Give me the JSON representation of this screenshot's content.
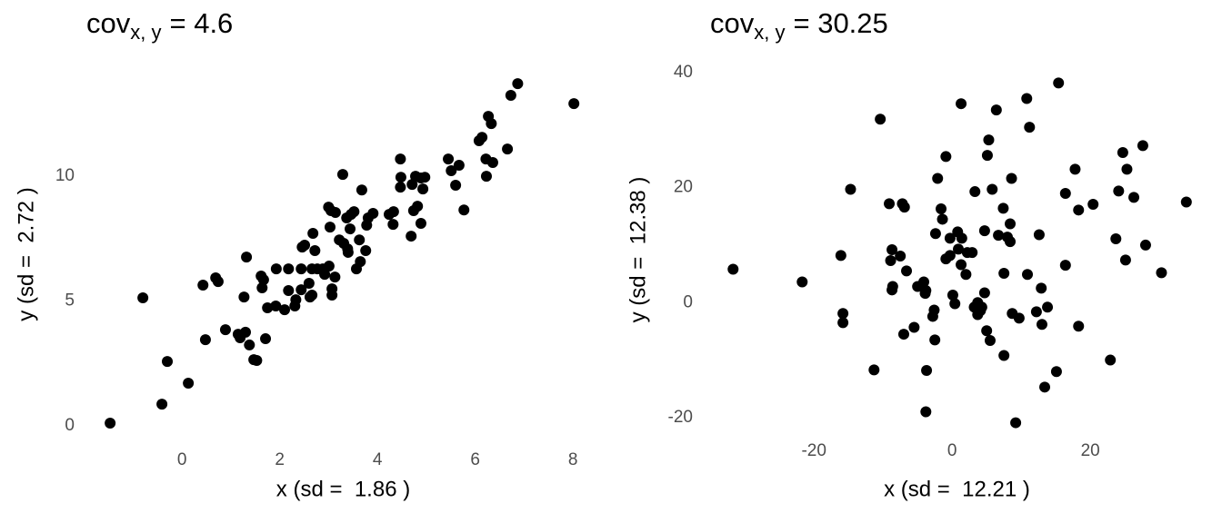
{
  "chart_data": [
    {
      "type": "scatter",
      "title": {
        "base": "cov",
        "subscript": "x, y",
        "rest": "= 4.6"
      },
      "x_label": "x (sd =  1.86 )",
      "y_label": "y (sd =  2.72 )",
      "color": "#000000",
      "grid": false,
      "xlim": [
        -1.77,
        8.37
      ],
      "ylim": [
        -0.4,
        14.15
      ],
      "xticks": [
        0,
        2,
        4,
        6,
        8
      ],
      "yticks": [
        0,
        5,
        10
      ],
      "x": [
        -1.47,
        -0.41,
        -0.8,
        -0.3,
        0.13,
        0.43,
        0.48,
        0.69,
        0.74,
        0.89,
        1.15,
        1.19,
        1.3,
        1.27,
        1.32,
        1.38,
        1.47,
        1.53,
        1.62,
        1.67,
        1.64,
        1.71,
        1.75,
        1.92,
        1.93,
        2.1,
        2.18,
        2.18,
        2.33,
        2.31,
        2.44,
        2.44,
        2.46,
        2.51,
        2.6,
        2.62,
        2.66,
        2.68,
        2.66,
        2.77,
        2.72,
        2.88,
        2.92,
        3.0,
        3.05,
        3.03,
        3.01,
        3.07,
        3.07,
        3.13,
        3.14,
        3.22,
        3.29,
        3.31,
        3.37,
        3.39,
        3.4,
        3.44,
        3.46,
        3.52,
        3.57,
        3.63,
        3.65,
        3.68,
        3.76,
        3.78,
        3.81,
        3.91,
        4.24,
        4.33,
        4.32,
        4.47,
        4.48,
        4.47,
        4.69,
        4.71,
        4.74,
        4.78,
        4.89,
        4.82,
        4.89,
        4.93,
        4.97,
        5.45,
        5.51,
        5.6,
        5.67,
        5.77,
        6.08,
        6.14,
        6.22,
        6.23,
        6.27,
        6.33,
        6.36,
        6.66,
        6.73,
        6.87,
        8.02
      ],
      "values": [
        0.11,
        0.87,
        5.13,
        2.58,
        1.71,
        5.64,
        3.45,
        5.93,
        5.78,
        3.85,
        3.67,
        3.53,
        3.75,
        5.16,
        6.76,
        3.24,
        2.65,
        2.62,
        6.0,
        5.85,
        5.53,
        3.49,
        4.73,
        4.8,
        6.29,
        4.65,
        6.29,
        5.42,
        5.05,
        4.8,
        6.29,
        5.45,
        7.16,
        7.24,
        5.71,
        5.16,
        5.24,
        7.71,
        6.29,
        6.29,
        7.02,
        6.29,
        6.07,
        8.76,
        8.62,
        7.96,
        6.4,
        5.49,
        5.24,
        5.96,
        8.55,
        7.45,
        10.07,
        7.31,
        8.33,
        7.09,
        6.95,
        7.89,
        8.47,
        8.58,
        6.29,
        7.45,
        6.58,
        9.45,
        7.02,
        8.04,
        8.33,
        8.51,
        8.47,
        8.58,
        8.07,
        10.69,
        9.96,
        9.56,
        7.6,
        9.67,
        8.62,
        10.0,
        9.93,
        8.8,
        8.11,
        9.49,
        9.96,
        10.69,
        10.22,
        9.64,
        10.44,
        8.65,
        11.42,
        11.56,
        10.69,
        10.0,
        12.4,
        12.11,
        10.55,
        11.09,
        13.24,
        13.71,
        12.91
      ]
    },
    {
      "type": "scatter",
      "title": {
        "base": "cov",
        "subscript": "x, y",
        "rest": "= 30.25"
      },
      "x_label": "x (sd =  12.21 )",
      "y_label": "y (sd =  12.38 )",
      "color": "#000000",
      "grid": false,
      "xlim": [
        -34.5,
        35.9
      ],
      "ylim": [
        -21.6,
        40
      ],
      "xticks": [
        -20,
        0,
        20
      ],
      "yticks": [
        -20,
        0,
        20,
        40
      ],
      "x": [
        -31.7,
        -21.7,
        -10.4,
        -14.7,
        -16.1,
        -15.8,
        -15.8,
        -11.3,
        -9.1,
        -7.2,
        -6.9,
        -8.9,
        -8.7,
        -8.6,
        -8.7,
        -7.5,
        -7.0,
        -6.6,
        -5.5,
        -5.0,
        -3.8,
        -4.1,
        -3.9,
        -3.7,
        -3.8,
        -2.6,
        -2.8,
        -2.5,
        -2.4,
        -2.1,
        -1.6,
        -1.4,
        -0.9,
        -0.9,
        -0.3,
        -0.3,
        0.1,
        0.4,
        0.8,
        0.9,
        1.3,
        1.4,
        1.3,
        2.0,
        2.2,
        2.9,
        3.3,
        3.2,
        3.7,
        3.7,
        4.1,
        4.3,
        4.7,
        4.7,
        5.1,
        5.3,
        5.0,
        5.5,
        5.8,
        6.4,
        6.7,
        7.4,
        7.5,
        7.5,
        8.0,
        8.4,
        8.4,
        8.6,
        8.7,
        9.7,
        9.2,
        10.8,
        10.9,
        11.2,
        12.6,
        12.2,
        12.9,
        13.0,
        13.4,
        13.8,
        15.1,
        15.4,
        16.4,
        16.4,
        17.8,
        18.3,
        18.3,
        20.4,
        22.9,
        23.7,
        24.1,
        24.7,
        25.3,
        25.1,
        26.3,
        27.6,
        28.0,
        30.3,
        33.9
      ],
      "values": [
        5.8,
        3.6,
        31.9,
        19.7,
        8.2,
        -1.9,
        -3.5,
        -11.7,
        17.2,
        17.2,
        16.6,
        7.3,
        9.2,
        2.8,
        2.2,
        8.1,
        -5.5,
        5.5,
        -4.3,
        2.8,
        2.1,
        3.6,
        1.6,
        -11.8,
        -19.0,
        -1.3,
        -2.4,
        -6.5,
        12.0,
        21.6,
        16.3,
        14.5,
        7.6,
        25.4,
        8.2,
        11.2,
        1.3,
        -0.2,
        12.3,
        9.3,
        6.6,
        11.2,
        34.6,
        4.9,
        8.7,
        8.7,
        19.3,
        -0.8,
        0,
        -2.1,
        -1.4,
        -0.8,
        1.7,
        12.5,
        25.6,
        28.3,
        -4.9,
        -6.6,
        19.7,
        33.5,
        11.7,
        16.4,
        5.1,
        -9.2,
        11.4,
        13.7,
        10.6,
        21.6,
        -1.9,
        -2.7,
        -20.9,
        35.5,
        4.9,
        30.5,
        11.8,
        -1.6,
        2.5,
        -3.8,
        -14.7,
        -0.8,
        -12.0,
        38.2,
        6.5,
        19.0,
        23.2,
        16.1,
        -4.1,
        17.1,
        -10.0,
        11.1,
        19.4,
        26.1,
        23.2,
        7.4,
        18.3,
        27.3,
        10.0,
        5.2,
        17.5
      ]
    }
  ]
}
